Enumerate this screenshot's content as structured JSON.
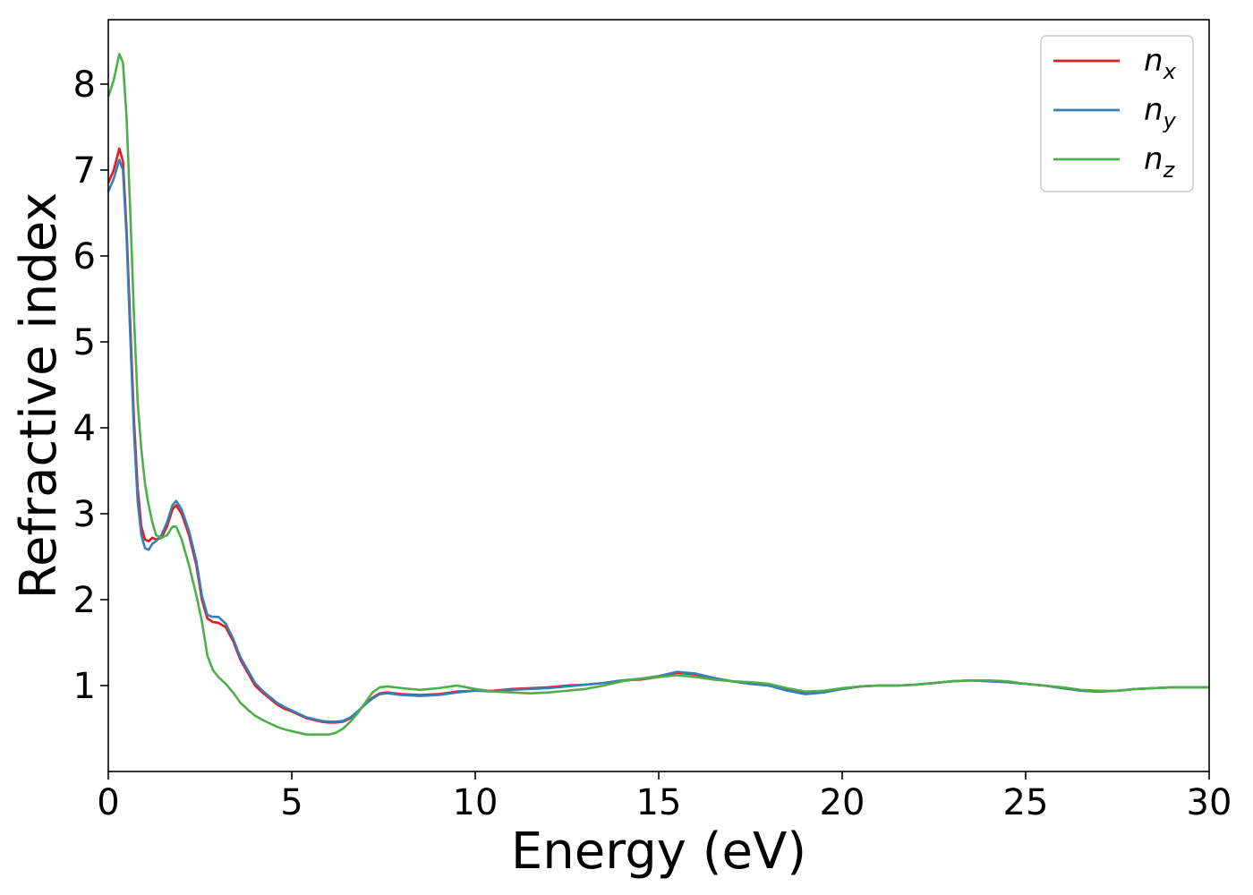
{
  "chart_data": {
    "type": "line",
    "title": "",
    "xlabel": "Energy (eV)",
    "ylabel": "Refractive index",
    "xlim": [
      0,
      30
    ],
    "ylim": [
      0,
      8.75
    ],
    "xticks": [
      0,
      5,
      10,
      15,
      20,
      25,
      30
    ],
    "yticks": [
      1,
      2,
      3,
      4,
      5,
      6,
      7,
      8
    ],
    "grid": false,
    "legend_position": "top-right",
    "series": [
      {
        "name": "n",
        "subscript": "x",
        "color": "#e41a1c",
        "x": [
          0,
          0.15,
          0.3,
          0.4,
          0.5,
          0.6,
          0.7,
          0.8,
          0.9,
          1.0,
          1.1,
          1.2,
          1.3,
          1.45,
          1.6,
          1.75,
          1.85,
          2.0,
          2.2,
          2.4,
          2.55,
          2.7,
          2.85,
          3.0,
          3.2,
          3.4,
          3.6,
          3.8,
          4.0,
          4.2,
          4.4,
          4.6,
          4.8,
          5.0,
          5.2,
          5.4,
          5.6,
          5.8,
          6.0,
          6.2,
          6.4,
          6.6,
          6.8,
          7.0,
          7.2,
          7.4,
          7.6,
          7.8,
          8.0,
          8.5,
          9.0,
          9.5,
          10.0,
          10.5,
          11.0,
          11.5,
          12.0,
          12.5,
          13.0,
          13.5,
          14.0,
          14.5,
          15.0,
          15.5,
          16.0,
          16.5,
          17.0,
          17.5,
          18.0,
          18.5,
          19.0,
          19.5,
          20.0,
          20.5,
          21.0,
          21.5,
          22.0,
          22.5,
          23.0,
          23.5,
          24.0,
          24.5,
          25.0,
          25.5,
          26.0,
          26.5,
          27.0,
          27.5,
          28.0,
          28.5,
          29.0,
          29.5,
          30.0
        ],
        "y": [
          6.85,
          7.0,
          7.25,
          7.1,
          6.3,
          5.2,
          4.1,
          3.3,
          2.85,
          2.7,
          2.68,
          2.72,
          2.7,
          2.72,
          2.85,
          3.05,
          3.1,
          3.0,
          2.75,
          2.4,
          2.0,
          1.78,
          1.74,
          1.73,
          1.68,
          1.52,
          1.3,
          1.15,
          1.0,
          0.92,
          0.85,
          0.78,
          0.73,
          0.7,
          0.66,
          0.62,
          0.6,
          0.58,
          0.57,
          0.57,
          0.58,
          0.62,
          0.7,
          0.78,
          0.86,
          0.91,
          0.92,
          0.91,
          0.9,
          0.89,
          0.9,
          0.93,
          0.94,
          0.94,
          0.96,
          0.97,
          0.98,
          1.0,
          1.01,
          1.03,
          1.06,
          1.07,
          1.1,
          1.15,
          1.13,
          1.08,
          1.05,
          1.02,
          1.0,
          0.95,
          0.91,
          0.93,
          0.96,
          0.99,
          1.0,
          1.0,
          1.01,
          1.03,
          1.05,
          1.06,
          1.05,
          1.04,
          1.02,
          1.0,
          0.97,
          0.94,
          0.93,
          0.94,
          0.96,
          0.97,
          0.98,
          0.98,
          0.98
        ]
      },
      {
        "name": "n",
        "subscript": "y",
        "color": "#377eb8",
        "x": [
          0,
          0.15,
          0.3,
          0.4,
          0.5,
          0.6,
          0.7,
          0.8,
          0.9,
          1.0,
          1.1,
          1.2,
          1.3,
          1.45,
          1.6,
          1.75,
          1.85,
          2.0,
          2.2,
          2.4,
          2.55,
          2.7,
          2.85,
          3.0,
          3.2,
          3.4,
          3.6,
          3.8,
          4.0,
          4.2,
          4.4,
          4.6,
          4.8,
          5.0,
          5.2,
          5.4,
          5.6,
          5.8,
          6.0,
          6.2,
          6.4,
          6.6,
          6.8,
          7.0,
          7.2,
          7.4,
          7.6,
          7.8,
          8.0,
          8.5,
          9.0,
          9.5,
          10.0,
          10.5,
          11.0,
          11.5,
          12.0,
          12.5,
          13.0,
          13.5,
          14.0,
          14.5,
          15.0,
          15.5,
          16.0,
          16.5,
          17.0,
          17.5,
          18.0,
          18.5,
          19.0,
          19.5,
          20.0,
          20.5,
          21.0,
          21.5,
          22.0,
          22.5,
          23.0,
          23.5,
          24.0,
          24.5,
          25.0,
          25.5,
          26.0,
          26.5,
          27.0,
          27.5,
          28.0,
          28.5,
          29.0,
          29.5,
          30.0
        ],
        "y": [
          6.75,
          6.9,
          7.12,
          7.0,
          6.2,
          5.05,
          3.95,
          3.15,
          2.75,
          2.6,
          2.58,
          2.65,
          2.68,
          2.75,
          2.9,
          3.1,
          3.15,
          3.05,
          2.8,
          2.45,
          2.05,
          1.82,
          1.8,
          1.8,
          1.72,
          1.55,
          1.33,
          1.18,
          1.03,
          0.94,
          0.87,
          0.8,
          0.75,
          0.71,
          0.67,
          0.63,
          0.61,
          0.59,
          0.58,
          0.58,
          0.59,
          0.63,
          0.7,
          0.78,
          0.85,
          0.9,
          0.91,
          0.9,
          0.89,
          0.88,
          0.89,
          0.92,
          0.94,
          0.93,
          0.95,
          0.96,
          0.97,
          0.99,
          1.01,
          1.03,
          1.06,
          1.08,
          1.11,
          1.16,
          1.14,
          1.09,
          1.05,
          1.02,
          1.0,
          0.94,
          0.9,
          0.92,
          0.96,
          0.99,
          1.0,
          1.0,
          1.01,
          1.03,
          1.05,
          1.06,
          1.05,
          1.04,
          1.02,
          1.0,
          0.97,
          0.94,
          0.93,
          0.94,
          0.96,
          0.97,
          0.98,
          0.98,
          0.98
        ]
      },
      {
        "name": "n",
        "subscript": "z",
        "color": "#4daf4a",
        "x": [
          0,
          0.15,
          0.3,
          0.4,
          0.5,
          0.6,
          0.7,
          0.8,
          0.9,
          1.0,
          1.1,
          1.2,
          1.3,
          1.45,
          1.6,
          1.75,
          1.85,
          2.0,
          2.2,
          2.4,
          2.55,
          2.7,
          2.85,
          3.0,
          3.2,
          3.4,
          3.6,
          3.8,
          4.0,
          4.2,
          4.4,
          4.6,
          4.8,
          5.0,
          5.2,
          5.4,
          5.6,
          5.8,
          6.0,
          6.2,
          6.4,
          6.6,
          6.8,
          7.0,
          7.2,
          7.4,
          7.6,
          7.8,
          8.0,
          8.5,
          9.0,
          9.5,
          10.0,
          10.5,
          11.0,
          11.5,
          12.0,
          12.5,
          13.0,
          13.5,
          14.0,
          14.5,
          15.0,
          15.5,
          16.0,
          16.5,
          17.0,
          17.5,
          18.0,
          18.5,
          19.0,
          19.5,
          20.0,
          20.5,
          21.0,
          21.5,
          22.0,
          22.5,
          23.0,
          23.5,
          24.0,
          24.5,
          25.0,
          25.5,
          26.0,
          26.5,
          27.0,
          27.5,
          28.0,
          28.5,
          29.0,
          29.5,
          30.0
        ],
        "y": [
          7.85,
          8.05,
          8.35,
          8.25,
          7.6,
          6.5,
          5.3,
          4.3,
          3.75,
          3.35,
          3.1,
          2.9,
          2.75,
          2.72,
          2.75,
          2.85,
          2.85,
          2.7,
          2.4,
          2.05,
          1.75,
          1.35,
          1.18,
          1.1,
          1.02,
          0.92,
          0.8,
          0.72,
          0.65,
          0.6,
          0.56,
          0.52,
          0.49,
          0.47,
          0.45,
          0.43,
          0.43,
          0.43,
          0.43,
          0.45,
          0.5,
          0.58,
          0.68,
          0.8,
          0.92,
          0.98,
          0.99,
          0.98,
          0.97,
          0.95,
          0.97,
          1.0,
          0.96,
          0.93,
          0.92,
          0.91,
          0.92,
          0.94,
          0.96,
          1.0,
          1.05,
          1.08,
          1.1,
          1.12,
          1.1,
          1.07,
          1.05,
          1.04,
          1.02,
          0.97,
          0.93,
          0.94,
          0.97,
          0.99,
          1.0,
          1.0,
          1.01,
          1.03,
          1.05,
          1.06,
          1.06,
          1.05,
          1.02,
          1.0,
          0.98,
          0.95,
          0.94,
          0.94,
          0.96,
          0.97,
          0.98,
          0.98,
          0.98
        ]
      }
    ]
  }
}
